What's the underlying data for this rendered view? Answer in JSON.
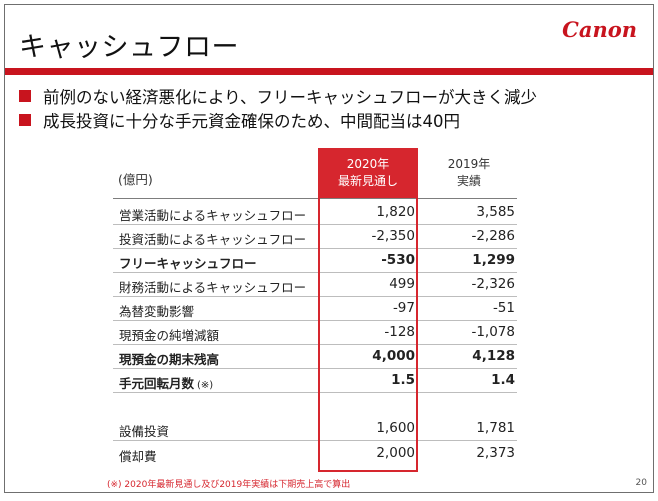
{
  "slide": {
    "title": "キャッシュフロー",
    "logo": "Canon",
    "page_number": "20"
  },
  "bullets": [
    "前例のない経済悪化により、フリーキャッシュフローが大きく減少",
    "成長投資に十分な手元資金確保のため、中間配当は40円"
  ],
  "table": {
    "unit": "(億円)",
    "col2020_line1": "2020年",
    "col2020_line2": "最新見通し",
    "col2019_line1": "2019年",
    "col2019_line2": "実績",
    "highlight_color": "#d6262e",
    "rows": [
      {
        "label": "営業活動によるキャッシュフロー",
        "v2020": "1,820",
        "v2019": "3,585"
      },
      {
        "label": "投資活動によるキャッシュフロー",
        "v2020": "-2,350",
        "v2019": "-2,286"
      },
      {
        "label": "フリーキャッシュフロー",
        "v2020": "-530",
        "v2019": "1,299"
      },
      {
        "label": "財務活動によるキャッシュフロー",
        "v2020": "499",
        "v2019": "-2,326"
      },
      {
        "label": "為替変動影響",
        "v2020": "-97",
        "v2019": "-51"
      },
      {
        "label": "現預金の純増減額",
        "v2020": "-128",
        "v2019": "-1,078"
      },
      {
        "label": "現預金の期末残高",
        "v2020": "4,000",
        "v2019": "4,128"
      },
      {
        "label": "手元回転月数",
        "note": "(※)",
        "v2020": "1.5",
        "v2019": "1.4"
      },
      {
        "label": "設備投資",
        "v2020": "1,600",
        "v2019": "1,781"
      },
      {
        "label": "償却費",
        "v2020": "2,000",
        "v2019": "2,373"
      }
    ]
  },
  "footnote": "(※) 2020年最新見通し及び2019年実績は下期売上高で算出",
  "brand_color": "#c8141e"
}
